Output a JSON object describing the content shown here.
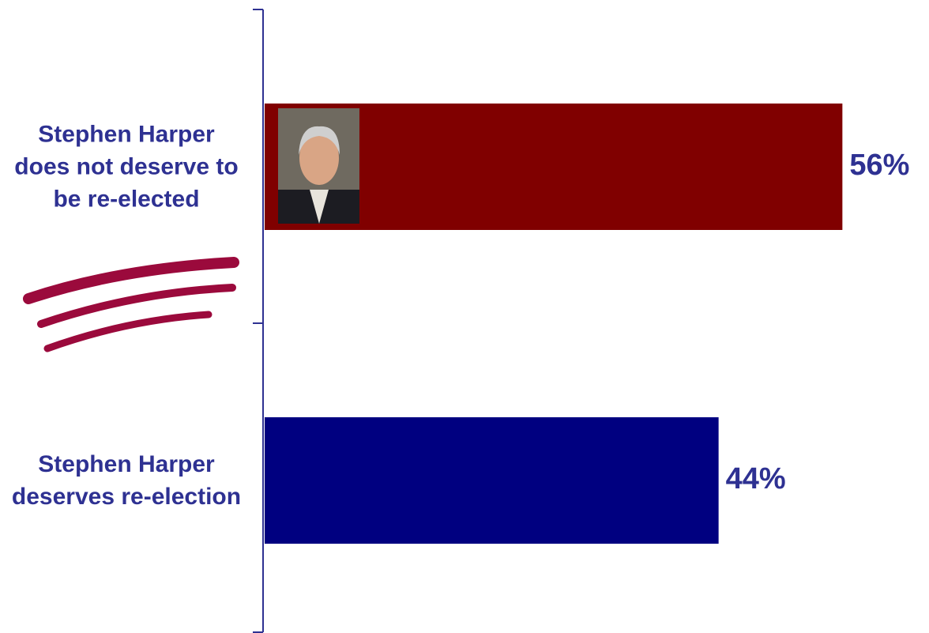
{
  "chart_data": {
    "type": "hbar",
    "categories": [
      "Stephen Harper does not deserve to be re-elected",
      "Stephen Harper deserves re-election"
    ],
    "values": [
      56,
      44
    ],
    "value_labels": [
      "56%",
      "44%"
    ],
    "colors": [
      "#800000",
      "#000080"
    ]
  }
}
